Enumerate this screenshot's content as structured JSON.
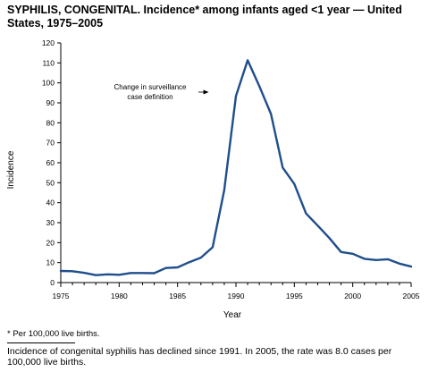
{
  "title": "SYPHILIS, CONGENITAL. Incidence* among infants aged <1 year — United States, 1975–2005",
  "footnote": "* Per 100,000 live births.",
  "caption": "Incidence of congenital syphilis has declined since 1991. In 2005, the rate was 8.0 cases per 100,000 live births.",
  "chart_data": {
    "type": "line",
    "xlabel": "Year",
    "ylabel": "Incidence",
    "xlim": [
      1975,
      2005
    ],
    "ylim": [
      0,
      120
    ],
    "xticks": [
      1975,
      1980,
      1985,
      1990,
      1995,
      2000,
      2005
    ],
    "yticks": [
      0,
      10,
      20,
      30,
      40,
      50,
      60,
      70,
      80,
      90,
      100,
      110,
      120
    ],
    "grid": false,
    "series": [
      {
        "color": "#1f4e8c",
        "x": [
          1975,
          1976,
          1977,
          1978,
          1979,
          1980,
          1981,
          1982,
          1983,
          1984,
          1985,
          1986,
          1987,
          1988,
          1989,
          1990,
          1991,
          1992,
          1993,
          1994,
          1995,
          1996,
          1997,
          1998,
          1999,
          2000,
          2001,
          2002,
          2003,
          2004,
          2005
        ],
        "values": [
          5.8,
          5.7,
          4.9,
          3.7,
          4.1,
          3.9,
          4.8,
          4.8,
          4.7,
          7.3,
          7.6,
          10.2,
          12.5,
          17.7,
          46.3,
          93.4,
          111.3,
          98.4,
          84.4,
          57.6,
          49.4,
          34.6,
          28.5,
          22.3,
          15.3,
          14.4,
          11.9,
          11.3,
          11.7,
          9.5,
          8.0
        ]
      }
    ],
    "annotations": [
      {
        "text": [
          "Change in surveillance",
          "case definition"
        ],
        "x": 1987.9,
        "y": 95
      }
    ]
  }
}
